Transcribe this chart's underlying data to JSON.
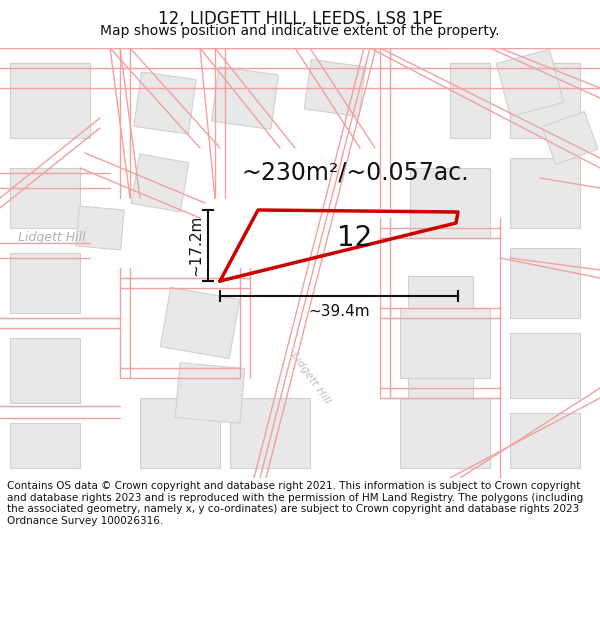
{
  "title": "12, LIDGETT HILL, LEEDS, LS8 1PE",
  "subtitle": "Map shows position and indicative extent of the property.",
  "footer": "Contains OS data © Crown copyright and database right 2021. This information is subject to Crown copyright and database rights 2023 and is reproduced with the permission of HM Land Registry. The polygons (including the associated geometry, namely x, y co-ordinates) are subject to Crown copyright and database rights 2023 Ordnance Survey 100026316.",
  "area_label": "~230m²/~0.057ac.",
  "number_label": "12",
  "dim_horiz": "~39.4m",
  "dim_vert": "~17.2m",
  "road_label_left": "Lidgett Hill",
  "road_label_diag": "Lidgett Hill",
  "map_bg": "#ffffff",
  "block_fill": "#e8e8e8",
  "block_stroke": "#d0d0d0",
  "road_line_color": "#f0a0a0",
  "property_color": "#cc0000",
  "dim_color": "#111111",
  "title_color": "#111111",
  "footer_color": "#111111",
  "title_fontsize": 12,
  "subtitle_fontsize": 10,
  "footer_fontsize": 7.5,
  "area_fontsize": 17,
  "number_fontsize": 20,
  "dim_fontsize": 11
}
